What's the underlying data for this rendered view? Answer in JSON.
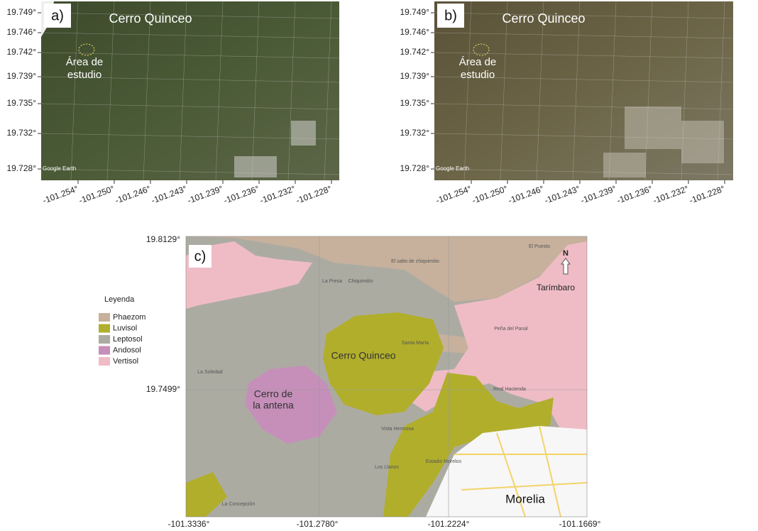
{
  "panels": [
    {
      "label": "a)",
      "title": "Cerro Quinceo",
      "study_area": [
        "Área de",
        "estudio"
      ],
      "credit": "Google Earth",
      "yticks": [
        "19.749°",
        "19.746°",
        "19.742°",
        "19.739°",
        "19.735°",
        "19.732°",
        "19.728°"
      ],
      "xticks": [
        "-101.254°",
        "-101.250°",
        "-101.246°",
        "-101.243°",
        "-101.239°",
        "-101.236°",
        "-101.232°",
        "-101.228°"
      ]
    },
    {
      "label": "b)",
      "title": "Cerro Quinceo",
      "study_area": [
        "Área de",
        "estudio"
      ],
      "credit": "Google Earth",
      "yticks": [
        "19.749°",
        "19.746°",
        "19.742°",
        "19.739°",
        "19.735°",
        "19.732°",
        "19.728°"
      ],
      "xticks": [
        "-101.254°",
        "-101.250°",
        "-101.246°",
        "-101.243°",
        "-101.239°",
        "-101.236°",
        "-101.232°",
        "-101.228°"
      ]
    }
  ],
  "map_c": {
    "label": "c)",
    "yticks": [
      "19.8129°",
      "19.7499°"
    ],
    "xticks": [
      "-101.3336°",
      "-101.2780°",
      "-101.2224°",
      "-101.1669°"
    ],
    "places": {
      "quinceo": "Cerro Quinceo",
      "antena": [
        "Cerro de",
        "la antena"
      ],
      "morelia": "Morelia",
      "tarimbaro": "Tarímbaro",
      "north": "N"
    },
    "minor_places": [
      "El Puesto",
      "La Presa",
      "Chiquimitío",
      "La Soledad",
      "Vista Hermosa",
      "Los Llanos",
      "La Concepción",
      "Estadio Morelos",
      "Peña del Panal",
      "Santa María",
      "Real Hacienda",
      "El salto de chiquimitio"
    ],
    "legend": {
      "title": "Leyenda",
      "items": [
        {
          "name": "Phaezom",
          "color": "#c7b19c"
        },
        {
          "name": "Luvisol",
          "color": "#b1ae2c"
        },
        {
          "name": "Leptosol",
          "color": "#acaba2"
        },
        {
          "name": "Andosol",
          "color": "#c58fb9"
        },
        {
          "name": "Vertisol",
          "color": "#efbcc5"
        }
      ]
    }
  }
}
